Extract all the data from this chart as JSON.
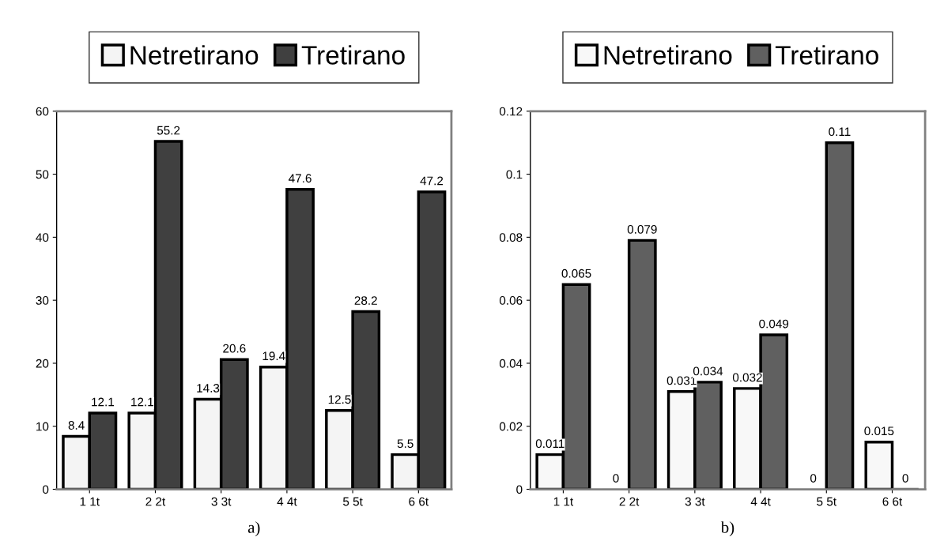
{
  "chart_data": [
    {
      "type": "bar",
      "xlabel": "a)",
      "categories": [
        "1 1t",
        "2 2t",
        "3 3t",
        "4 4t",
        "5 5t",
        "6 6t"
      ],
      "series": [
        {
          "name": "Netretirano",
          "color": "#f4f4f4",
          "values": [
            8.4,
            12.1,
            14.3,
            19.4,
            12.5,
            5.5
          ]
        },
        {
          "name": "Tretirano",
          "color": "#404040",
          "values": [
            12.1,
            55.2,
            20.6,
            47.6,
            28.2,
            47.2
          ]
        }
      ],
      "ylim": [
        0,
        60
      ],
      "yticks": [
        0,
        10,
        20,
        30,
        40,
        50,
        60
      ],
      "data_labels": true,
      "legend": "top",
      "grid": false
    },
    {
      "type": "bar",
      "xlabel": "b)",
      "categories": [
        "1 1t",
        "2 2t",
        "3 3t",
        "4 4t",
        "5 5t",
        "6 6t"
      ],
      "series": [
        {
          "name": "Netretirano",
          "color": "#f8f8f8",
          "values": [
            0.011,
            0,
            0.031,
            0.032,
            0,
            0.015
          ]
        },
        {
          "name": "Tretirano",
          "color": "#606060",
          "values": [
            0.065,
            0.079,
            0.034,
            0.049,
            0.11,
            0
          ]
        }
      ],
      "ylim": [
        0,
        0.12
      ],
      "yticks": [
        0,
        0.02,
        0.04,
        0.06,
        0.08,
        0.1,
        0.12
      ],
      "data_labels": true,
      "legend": "top",
      "grid": false
    }
  ]
}
